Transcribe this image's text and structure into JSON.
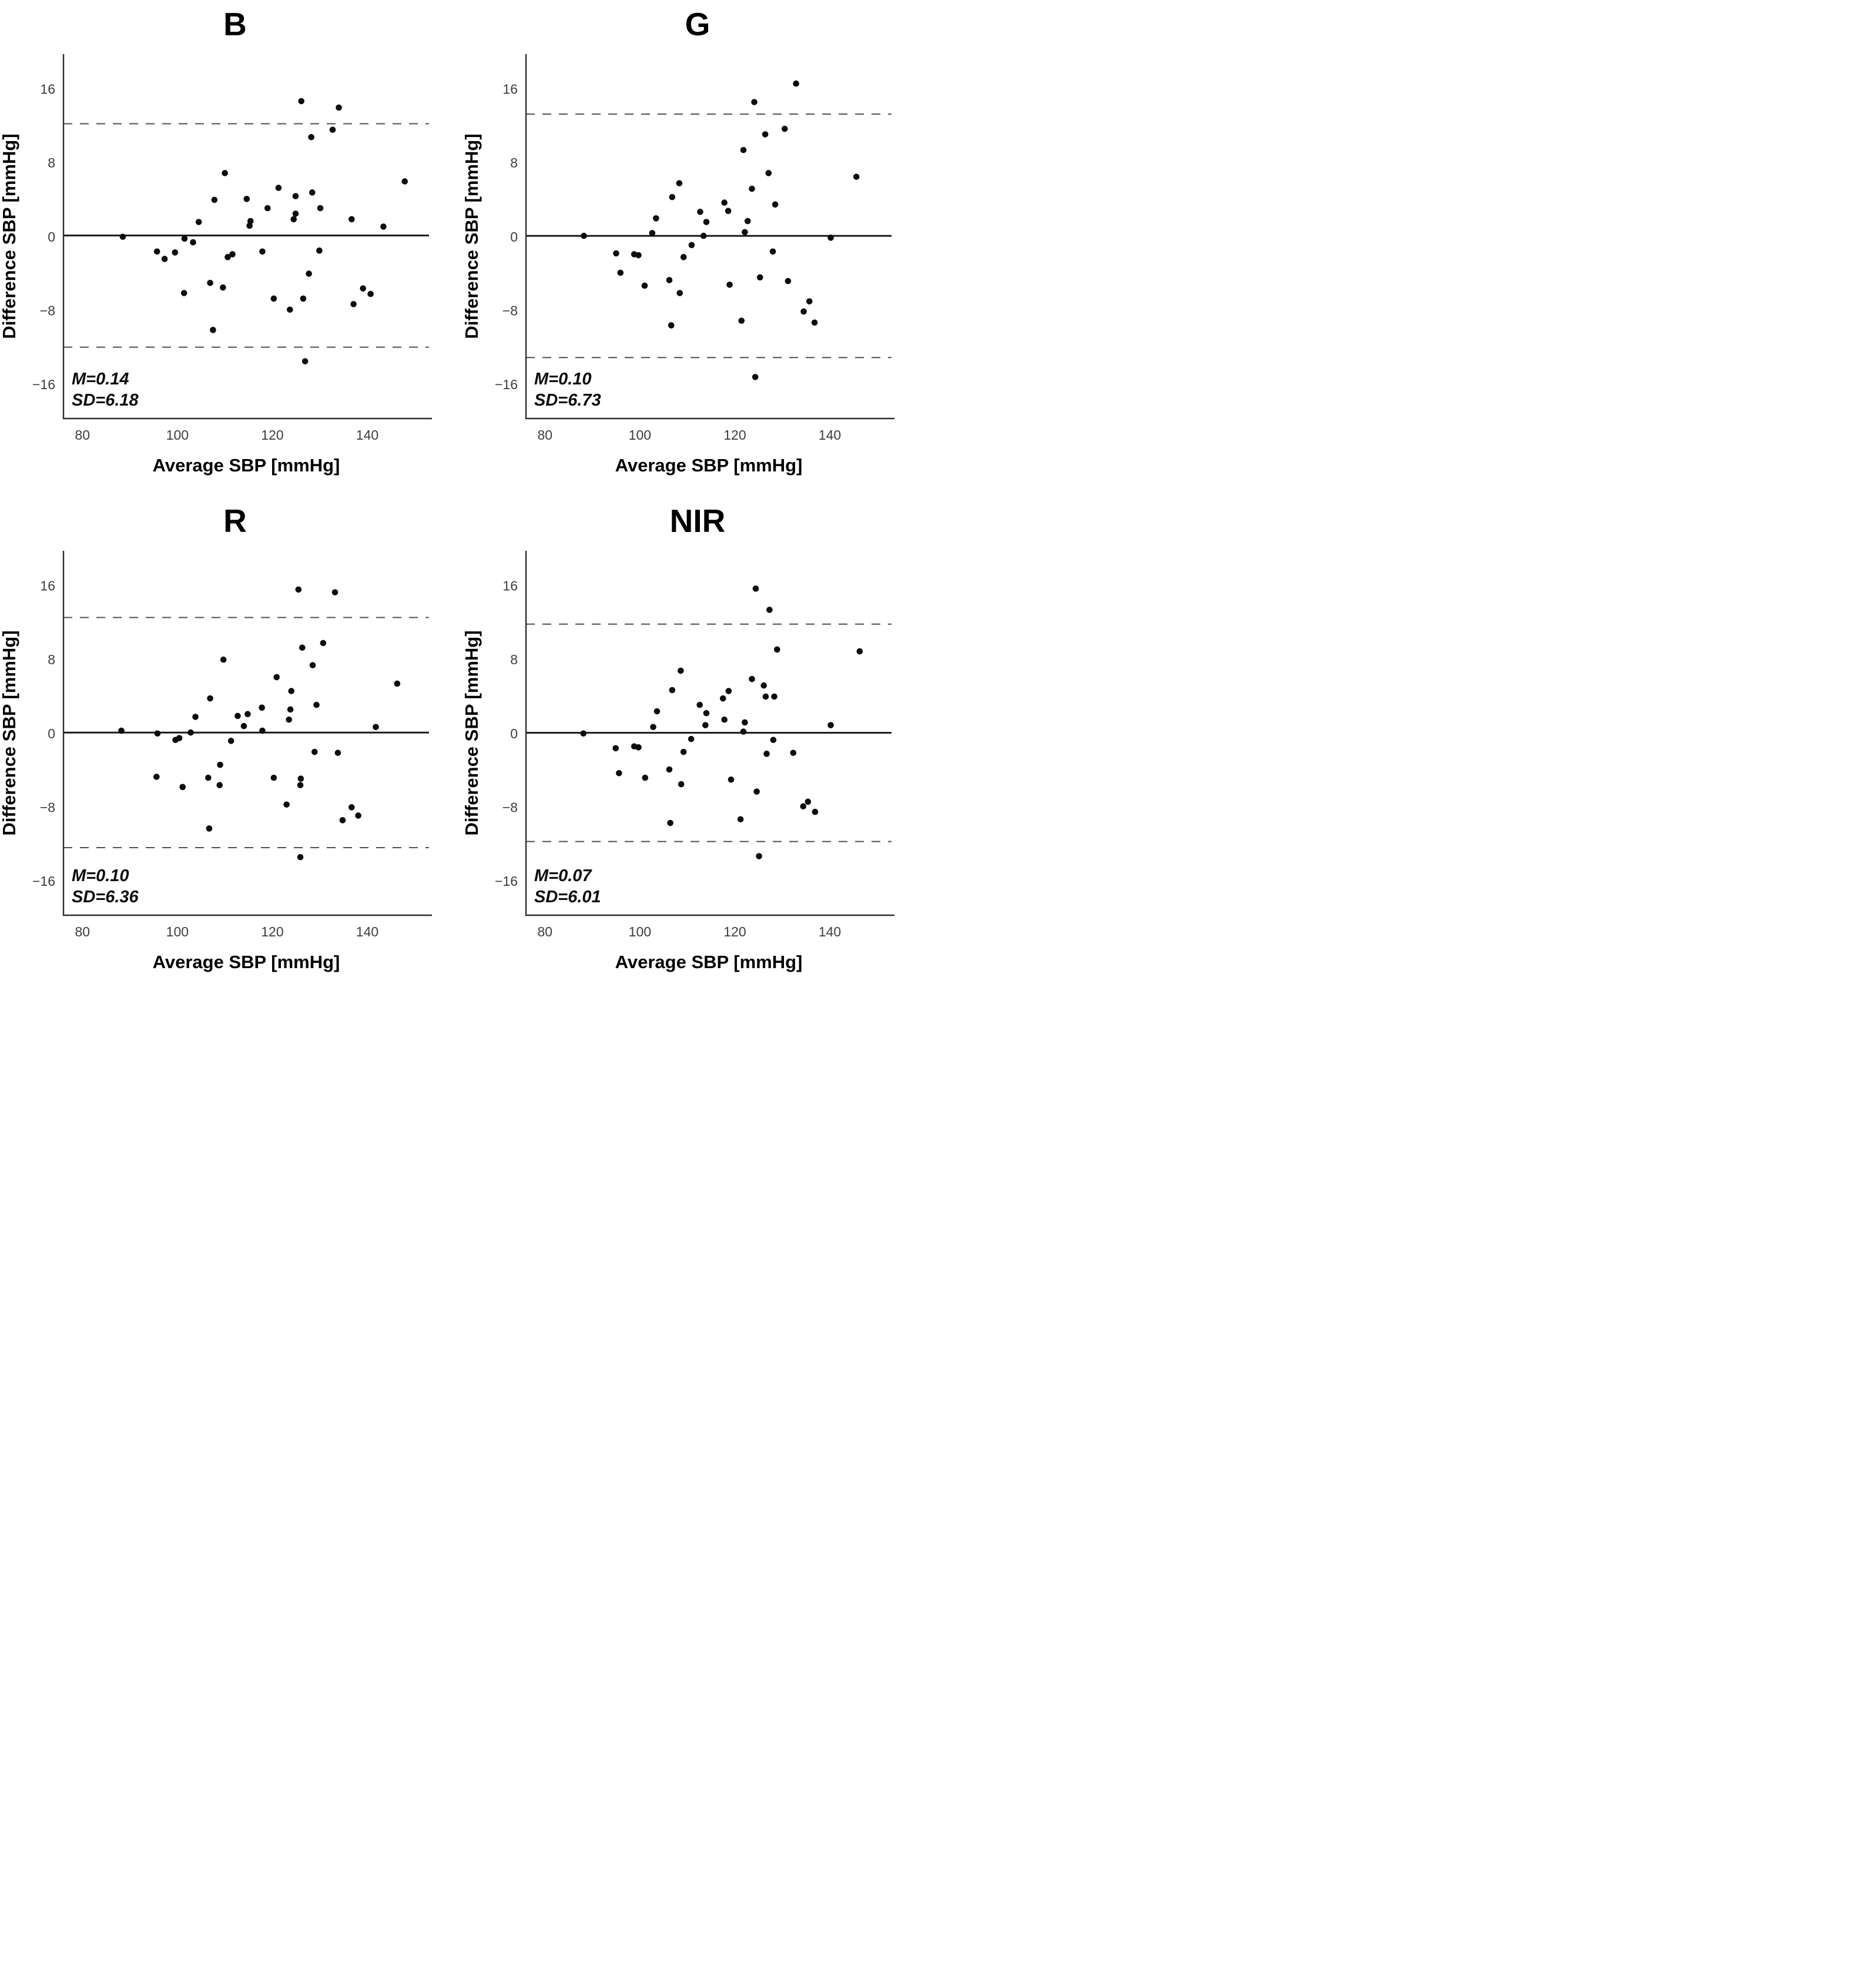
{
  "figure": {
    "background": "#ffffff",
    "description_title_labels": [
      "B",
      "G",
      "R",
      "NIR"
    ]
  },
  "styles": {
    "point_color": "#0d0d0d",
    "mean_line_color": "#1a1a1a",
    "loa_line_color": "#4f4f4f",
    "axis_color": "#2e2e2e",
    "tick_label_color": "#3d3d3d"
  },
  "chart_data": [
    {
      "type": "scatter",
      "title": "B",
      "xlabel": "Average SBP [mmHg]",
      "ylabel": "Difference SBP [mmHg]",
      "m_label": "M=0.14",
      "sd_label": "SD=6.18",
      "mean": 0.14,
      "sd": 6.18,
      "loa_upper": 12.25,
      "loa_lower": -11.97,
      "xlim": [
        76,
        153
      ],
      "ylim": [
        -19.7,
        19.8
      ],
      "xticks": [
        80,
        100,
        120,
        140
      ],
      "xtick_labels": [
        "80",
        "100",
        "120",
        "140"
      ],
      "yticks": [
        -16,
        -8,
        0,
        8,
        16
      ],
      "ytick_labels": [
        "−16",
        "−8",
        "0",
        "8",
        "16"
      ],
      "grid": false,
      "legend": false,
      "points": [
        [
          88.5,
          0.0
        ],
        [
          95.7,
          -1.6
        ],
        [
          97.3,
          -2.4
        ],
        [
          99.5,
          -1.7
        ],
        [
          101.5,
          -0.2
        ],
        [
          103.3,
          -0.6
        ],
        [
          104.5,
          1.6
        ],
        [
          101.4,
          -6.1
        ],
        [
          106.9,
          -5.0
        ],
        [
          107.5,
          -10.1
        ],
        [
          107.8,
          4.0
        ],
        [
          110.0,
          6.9
        ],
        [
          109.6,
          -5.5
        ],
        [
          110.6,
          -2.2
        ],
        [
          111.6,
          -1.9
        ],
        [
          114.6,
          4.1
        ],
        [
          115.2,
          1.2
        ],
        [
          115.4,
          1.7
        ],
        [
          117.9,
          -1.6
        ],
        [
          119.0,
          3.1
        ],
        [
          120.3,
          -6.7
        ],
        [
          121.3,
          5.3
        ],
        [
          123.7,
          -7.9
        ],
        [
          124.5,
          1.9
        ],
        [
          124.9,
          2.5
        ],
        [
          124.9,
          4.4
        ],
        [
          126.1,
          14.7
        ],
        [
          126.5,
          -6.7
        ],
        [
          126.9,
          -13.5
        ],
        [
          127.7,
          -4.0
        ],
        [
          128.2,
          10.8
        ],
        [
          128.4,
          4.8
        ],
        [
          130.1,
          3.1
        ],
        [
          129.9,
          -1.5
        ],
        [
          132.7,
          11.6
        ],
        [
          134.0,
          14.0
        ],
        [
          136.7,
          1.9
        ],
        [
          137.1,
          -7.3
        ],
        [
          139.1,
          -5.6
        ],
        [
          140.7,
          -6.2
        ],
        [
          143.4,
          1.1
        ],
        [
          147.9,
          6.0
        ]
      ]
    },
    {
      "type": "scatter",
      "title": "G",
      "xlabel": "Average SBP [mmHg]",
      "ylabel": "Difference SBP [mmHg]",
      "m_label": "M=0.10",
      "sd_label": "SD=6.73",
      "mean": 0.1,
      "sd": 6.73,
      "loa_upper": 13.29,
      "loa_lower": -13.09,
      "xlim": [
        76,
        153
      ],
      "ylim": [
        -19.7,
        19.8
      ],
      "xticks": [
        80,
        100,
        120,
        140
      ],
      "xtick_labels": [
        "80",
        "100",
        "120",
        "140"
      ],
      "yticks": [
        -16,
        -8,
        0,
        8,
        16
      ],
      "ytick_labels": [
        "−16",
        "−8",
        "0",
        "8",
        "16"
      ],
      "grid": false,
      "legend": false,
      "points": [
        [
          88.2,
          0.1
        ],
        [
          95.0,
          -1.8
        ],
        [
          95.9,
          -3.9
        ],
        [
          98.8,
          -1.9
        ],
        [
          99.7,
          -2.0
        ],
        [
          101.0,
          -5.3
        ],
        [
          102.6,
          0.4
        ],
        [
          103.4,
          2.0
        ],
        [
          106.2,
          -4.7
        ],
        [
          106.6,
          -9.6
        ],
        [
          106.8,
          4.3
        ],
        [
          108.3,
          5.8
        ],
        [
          108.4,
          -6.1
        ],
        [
          109.2,
          -2.2
        ],
        [
          110.9,
          -0.9
        ],
        [
          112.7,
          2.7
        ],
        [
          113.4,
          0.1
        ],
        [
          114.0,
          1.6
        ],
        [
          117.8,
          3.7
        ],
        [
          118.6,
          2.8
        ],
        [
          118.9,
          -5.2
        ],
        [
          121.4,
          -9.1
        ],
        [
          121.8,
          9.4
        ],
        [
          122.1,
          0.5
        ],
        [
          122.7,
          1.7
        ],
        [
          123.6,
          5.2
        ],
        [
          124.1,
          14.6
        ],
        [
          124.3,
          -15.2
        ],
        [
          125.3,
          -4.4
        ],
        [
          126.4,
          11.1
        ],
        [
          127.1,
          6.9
        ],
        [
          128.0,
          -1.6
        ],
        [
          128.5,
          3.5
        ],
        [
          130.5,
          11.7
        ],
        [
          131.2,
          -4.8
        ],
        [
          132.9,
          16.6
        ],
        [
          134.5,
          -8.1
        ],
        [
          135.7,
          -7.0
        ],
        [
          136.8,
          -9.3
        ],
        [
          140.2,
          -0.1
        ],
        [
          145.6,
          6.5
        ]
      ]
    },
    {
      "type": "scatter",
      "title": "R",
      "xlabel": "Average SBP [mmHg]",
      "ylabel": "Difference SBP [mmHg]",
      "m_label": "M=0.10",
      "sd_label": "SD=6.36",
      "mean": 0.1,
      "sd": 6.36,
      "loa_upper": 12.57,
      "loa_lower": -12.37,
      "xlim": [
        76,
        153
      ],
      "ylim": [
        -19.7,
        19.8
      ],
      "xticks": [
        80,
        100,
        120,
        140
      ],
      "xtick_labels": [
        "80",
        "100",
        "120",
        "140"
      ],
      "yticks": [
        -16,
        -8,
        0,
        8,
        16
      ],
      "ytick_labels": [
        "−16",
        "−8",
        "0",
        "8",
        "16"
      ],
      "grid": false,
      "legend": false,
      "points": [
        [
          88.2,
          0.3
        ],
        [
          95.8,
          0.0
        ],
        [
          95.6,
          -4.7
        ],
        [
          99.6,
          -0.7
        ],
        [
          100.4,
          -0.5
        ],
        [
          101.1,
          -5.8
        ],
        [
          102.8,
          0.1
        ],
        [
          103.8,
          1.8
        ],
        [
          106.5,
          -4.8
        ],
        [
          106.7,
          -10.3
        ],
        [
          106.9,
          3.8
        ],
        [
          108.9,
          -5.6
        ],
        [
          109.0,
          -3.4
        ],
        [
          109.7,
          8.0
        ],
        [
          111.3,
          -0.8
        ],
        [
          112.7,
          1.9
        ],
        [
          114.0,
          0.8
        ],
        [
          114.8,
          2.1
        ],
        [
          117.8,
          2.8
        ],
        [
          117.9,
          0.3
        ],
        [
          120.3,
          -4.8
        ],
        [
          120.9,
          6.1
        ],
        [
          123.0,
          -7.7
        ],
        [
          123.5,
          1.5
        ],
        [
          123.8,
          2.6
        ],
        [
          124.0,
          4.6
        ],
        [
          125.5,
          15.6
        ],
        [
          125.9,
          -13.4
        ],
        [
          126.0,
          -4.9
        ],
        [
          125.9,
          -5.6
        ],
        [
          126.3,
          9.3
        ],
        [
          128.5,
          7.4
        ],
        [
          128.9,
          -2.0
        ],
        [
          129.3,
          3.1
        ],
        [
          130.7,
          9.8
        ],
        [
          133.2,
          15.3
        ],
        [
          133.8,
          -2.1
        ],
        [
          134.8,
          -9.4
        ],
        [
          136.7,
          -8.0
        ],
        [
          138.1,
          -8.9
        ],
        [
          141.8,
          0.7
        ],
        [
          146.3,
          5.4
        ]
      ]
    },
    {
      "type": "scatter",
      "title": "NIR",
      "xlabel": "Average SBP [mmHg]",
      "ylabel": "Difference SBP [mmHg]",
      "m_label": "M=0.07",
      "sd_label": "SD=6.01",
      "mean": 0.07,
      "sd": 6.01,
      "loa_upper": 11.85,
      "loa_lower": -11.71,
      "xlim": [
        76,
        153
      ],
      "ylim": [
        -19.7,
        19.8
      ],
      "xticks": [
        80,
        100,
        120,
        140
      ],
      "xtick_labels": [
        "80",
        "100",
        "120",
        "140"
      ],
      "yticks": [
        -16,
        -8,
        0,
        8,
        16
      ],
      "ytick_labels": [
        "−16",
        "−8",
        "0",
        "8",
        "16"
      ],
      "grid": false,
      "legend": false,
      "points": [
        [
          88.1,
          0.0
        ],
        [
          94.9,
          -1.6
        ],
        [
          95.6,
          -4.3
        ],
        [
          98.8,
          -1.4
        ],
        [
          99.7,
          -1.5
        ],
        [
          101.1,
          -4.8
        ],
        [
          102.8,
          0.7
        ],
        [
          103.6,
          2.4
        ],
        [
          106.2,
          -3.9
        ],
        [
          106.4,
          -9.7
        ],
        [
          106.8,
          4.7
        ],
        [
          108.6,
          6.8
        ],
        [
          108.7,
          -5.5
        ],
        [
          109.2,
          -2.0
        ],
        [
          110.8,
          -0.6
        ],
        [
          112.6,
          3.1
        ],
        [
          113.8,
          0.9
        ],
        [
          114.0,
          2.2
        ],
        [
          117.5,
          3.8
        ],
        [
          117.8,
          1.5
        ],
        [
          118.7,
          4.6
        ],
        [
          119.2,
          -5.0
        ],
        [
          121.2,
          -9.3
        ],
        [
          121.8,
          0.2
        ],
        [
          122.1,
          1.2
        ],
        [
          123.6,
          5.9
        ],
        [
          124.4,
          15.7
        ],
        [
          125.1,
          -13.3
        ],
        [
          124.6,
          -6.3
        ],
        [
          126.1,
          5.2
        ],
        [
          126.5,
          4.0
        ],
        [
          126.7,
          -2.2
        ],
        [
          127.3,
          13.4
        ],
        [
          128.3,
          4.0
        ],
        [
          128.1,
          -0.7
        ],
        [
          128.9,
          9.1
        ],
        [
          132.3,
          -2.1
        ],
        [
          134.4,
          -7.9
        ],
        [
          135.4,
          -7.4
        ],
        [
          136.9,
          -8.5
        ],
        [
          140.2,
          0.9
        ],
        [
          146.3,
          8.9
        ]
      ]
    }
  ]
}
